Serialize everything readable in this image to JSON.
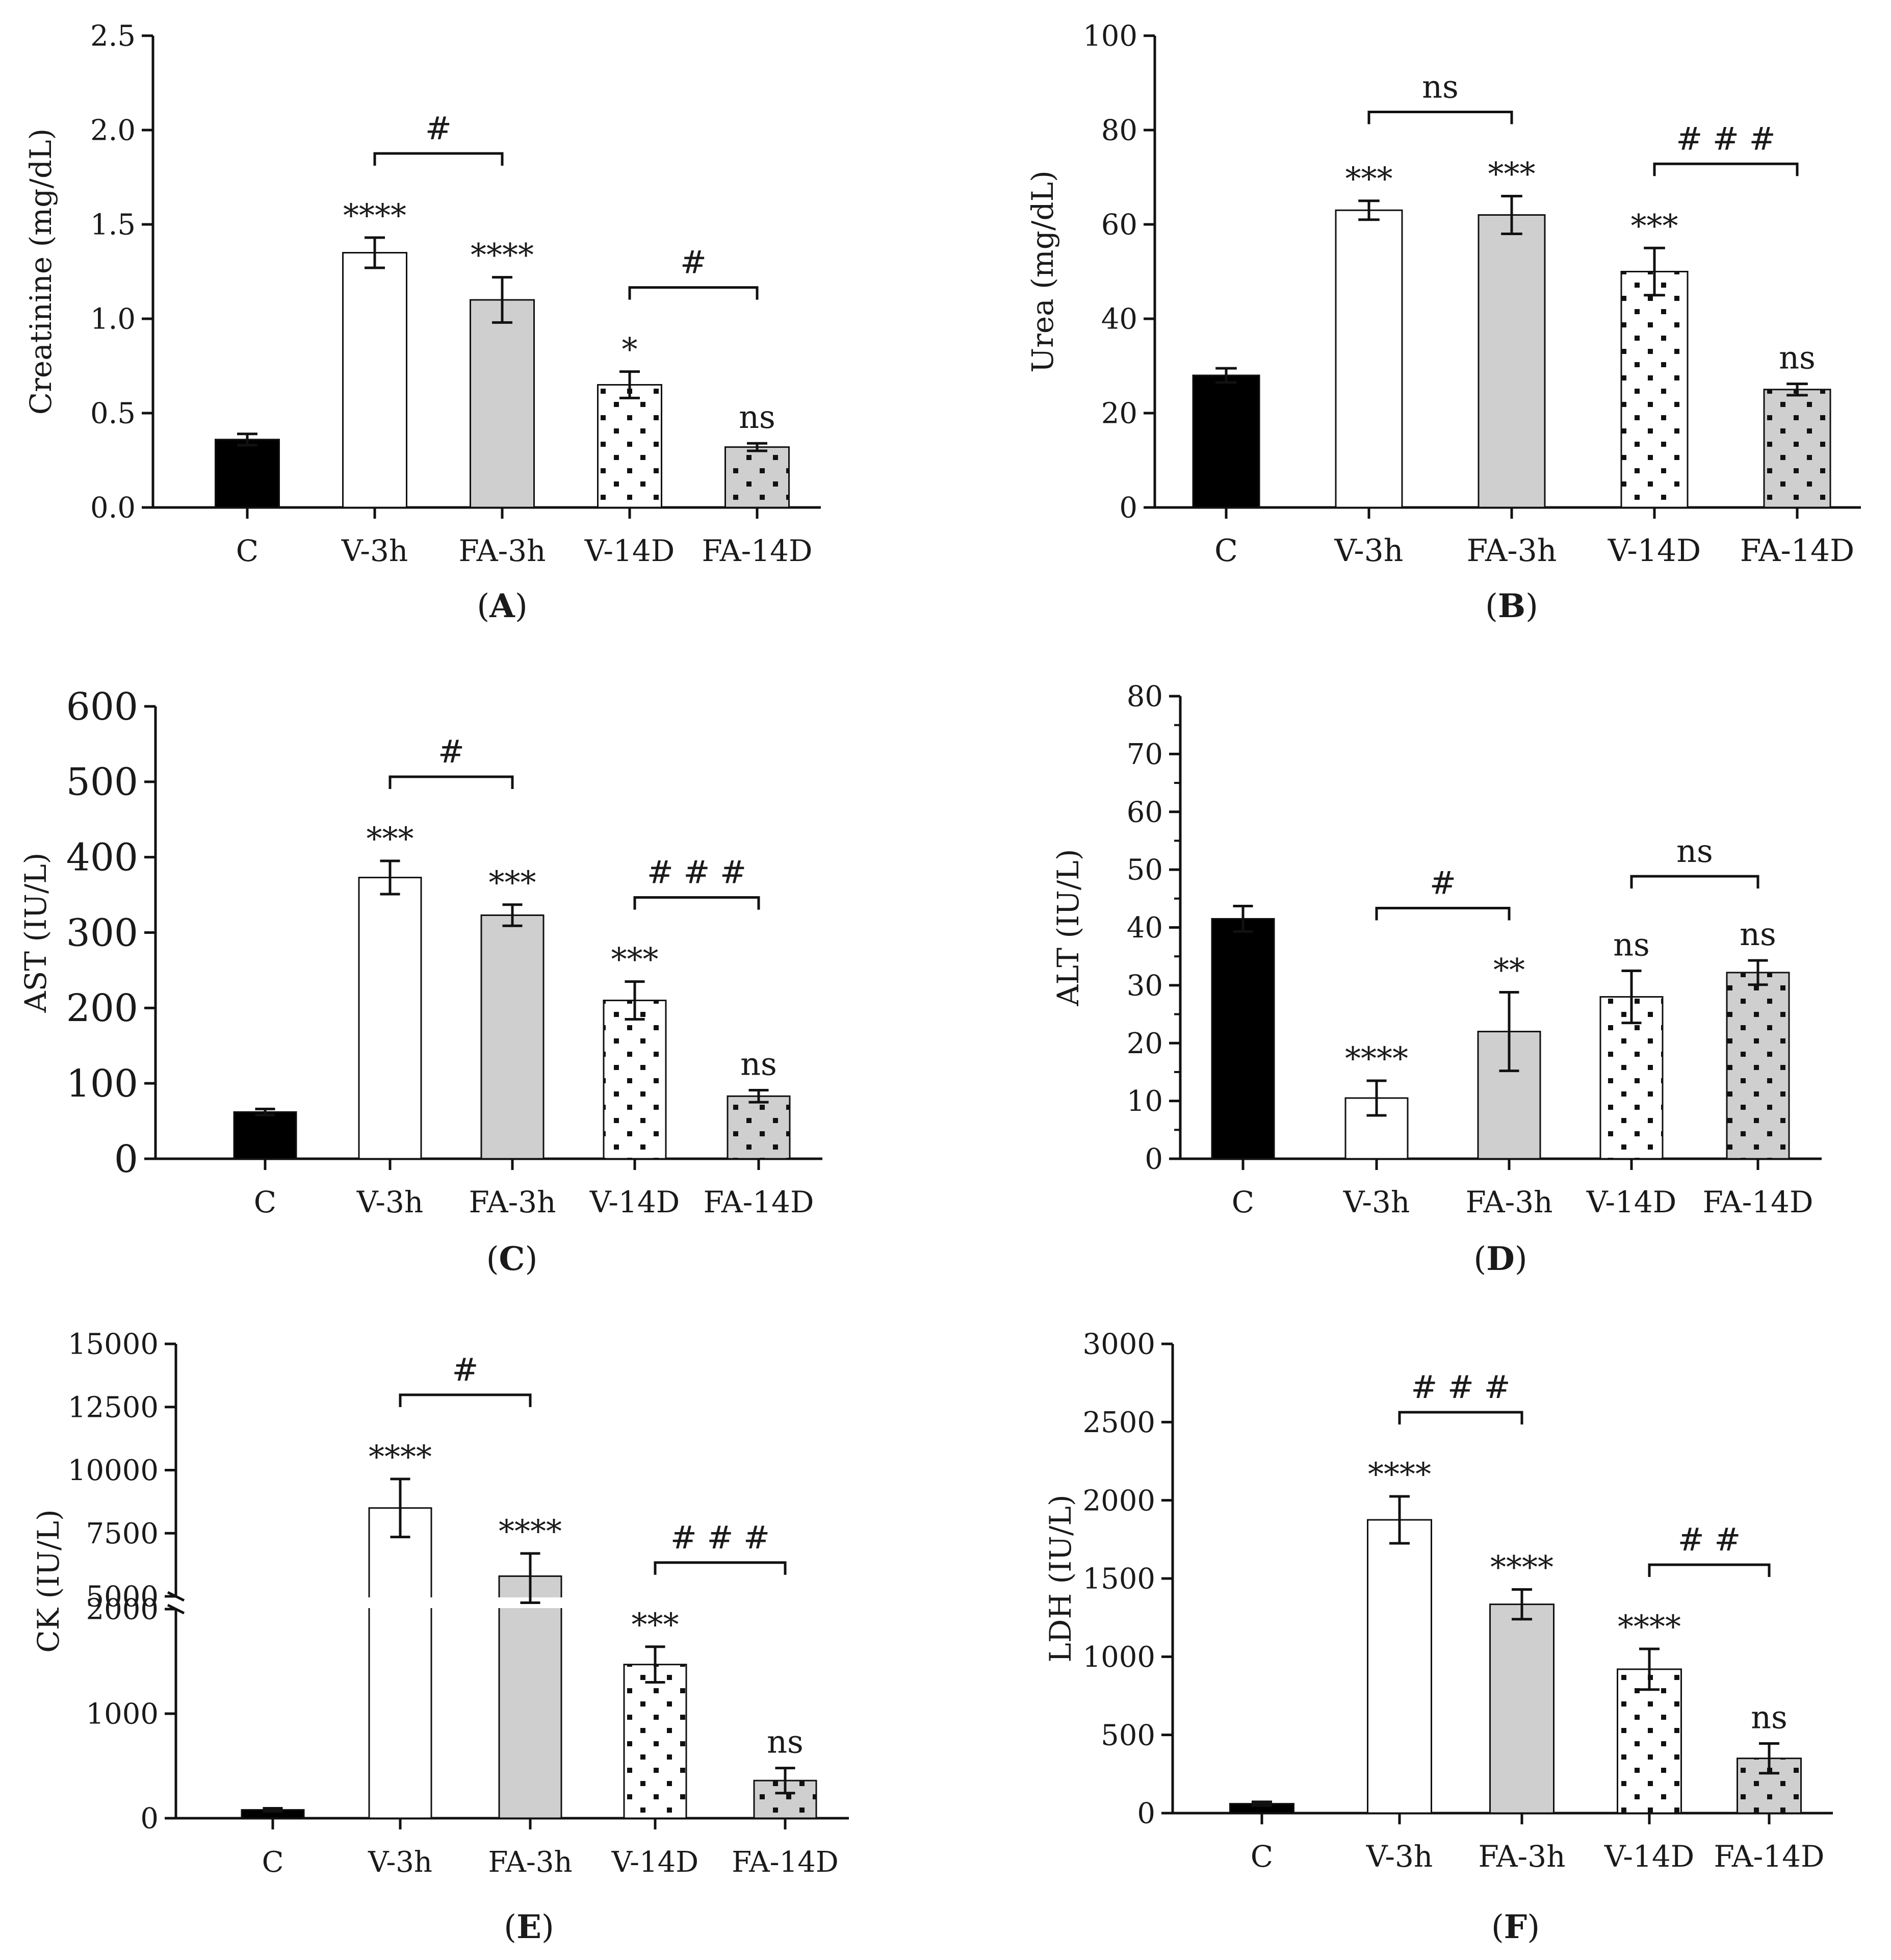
{
  "chart_data": [
    {
      "type": "bar",
      "panel_label": "A",
      "ylabel": "Creatinine (mg/dL)",
      "xlabel": "",
      "categories": [
        "C",
        "V-3h",
        "FA-3h",
        "V-14D",
        "FA-14D"
      ],
      "values": [
        0.36,
        1.35,
        1.1,
        0.65,
        0.32
      ],
      "errors": [
        0.03,
        0.08,
        0.12,
        0.07,
        0.02
      ],
      "ylim": [
        0,
        2.5
      ],
      "yticks": [
        "0.0",
        "0.5",
        "1.0",
        "1.5",
        "2.0",
        "2.5"
      ],
      "sig_labels": [
        "",
        "****",
        "****",
        "*",
        "ns"
      ],
      "brackets": [
        {
          "from": 1,
          "to": 2,
          "label": "#"
        },
        {
          "from": 3,
          "to": 4,
          "label": "#"
        }
      ],
      "grid": false
    },
    {
      "type": "bar",
      "panel_label": "B",
      "ylabel": "Urea (mg/dL)",
      "xlabel": "",
      "categories": [
        "C",
        "V-3h",
        "FA-3h",
        "V-14D",
        "FA-14D"
      ],
      "values": [
        28,
        63,
        62,
        50,
        25
      ],
      "errors": [
        1.5,
        2,
        4,
        5,
        1.2
      ],
      "ylim": [
        0,
        100
      ],
      "yticks": [
        "0",
        "20",
        "40",
        "60",
        "80",
        "100"
      ],
      "sig_labels": [
        "",
        "***",
        "***",
        "***",
        "ns"
      ],
      "brackets": [
        {
          "from": 1,
          "to": 2,
          "label": "ns"
        },
        {
          "from": 3,
          "to": 4,
          "label": "# # #"
        }
      ],
      "grid": false
    },
    {
      "type": "bar",
      "panel_label": "C",
      "ylabel": "AST (IU/L)",
      "xlabel": "",
      "categories": [
        "C",
        "V-3h",
        "FA-3h",
        "V-14D",
        "FA-14D"
      ],
      "values": [
        62,
        373,
        323,
        210,
        83
      ],
      "errors": [
        4,
        22,
        14,
        25,
        8
      ],
      "ylim": [
        0,
        600
      ],
      "yticks": [
        "0",
        "100",
        "200",
        "300",
        "400",
        "500",
        "600"
      ],
      "sig_labels": [
        "",
        "***",
        "***",
        "***",
        "ns"
      ],
      "brackets": [
        {
          "from": 1,
          "to": 2,
          "label": "#"
        },
        {
          "from": 3,
          "to": 4,
          "label": "# # #"
        }
      ],
      "grid": false
    },
    {
      "type": "bar",
      "panel_label": "D",
      "ylabel": "ALT (IU/L)",
      "xlabel": "",
      "categories": [
        "C",
        "V-3h",
        "FA-3h",
        "V-14D",
        "FA-14D"
      ],
      "values": [
        41.5,
        10.5,
        22,
        28,
        32.2
      ],
      "errors": [
        2.2,
        3,
        6.8,
        4.5,
        2.1
      ],
      "ylim": [
        0,
        80
      ],
      "yticks": [
        "0",
        "10",
        "20",
        "30",
        "40",
        "50",
        "60",
        "70",
        "80"
      ],
      "sig_labels": [
        "",
        "****",
        "**",
        "ns",
        "ns"
      ],
      "brackets": [
        {
          "from": 1,
          "to": 2,
          "label": "#"
        },
        {
          "from": 3,
          "to": 4,
          "label": "ns"
        }
      ],
      "grid": false
    },
    {
      "type": "bar",
      "panel_label": "E",
      "ylabel": "CK (IU/L)",
      "xlabel": "",
      "categories": [
        "C",
        "V-3h",
        "FA-3h",
        "V-14D",
        "FA-14D"
      ],
      "values": [
        80,
        8500,
        5800,
        1470,
        360
      ],
      "errors": [
        15,
        1150,
        900,
        170,
        120
      ],
      "ylim": [
        0,
        15000
      ],
      "axis_break": {
        "lower_range": [
          0,
          2000
        ],
        "upper_range": [
          5000,
          15000
        ]
      },
      "yticks": [
        "0",
        "1000",
        "2000",
        "5000",
        "7500",
        "10000",
        "12500",
        "15000"
      ],
      "sig_labels": [
        "",
        "****",
        "****",
        "***",
        "ns"
      ],
      "brackets": [
        {
          "from": 1,
          "to": 2,
          "label": "#"
        },
        {
          "from": 3,
          "to": 4,
          "label": "# # #"
        }
      ],
      "grid": false
    },
    {
      "type": "bar",
      "panel_label": "F",
      "ylabel": "LDH (IU/L)",
      "xlabel": "",
      "categories": [
        "C",
        "V-3h",
        "FA-3h",
        "V-14D",
        "FA-14D"
      ],
      "values": [
        60,
        1875,
        1335,
        920,
        350
      ],
      "errors": [
        12,
        150,
        95,
        130,
        95
      ],
      "ylim": [
        0,
        3000
      ],
      "yticks": [
        "0",
        "500",
        "1000",
        "1500",
        "2000",
        "2500",
        "3000"
      ],
      "sig_labels": [
        "",
        "****",
        "****",
        "****",
        "ns"
      ],
      "brackets": [
        {
          "from": 1,
          "to": 2,
          "label": "# # #"
        },
        {
          "from": 3,
          "to": 4,
          "label": "# #"
        }
      ],
      "grid": false
    }
  ]
}
